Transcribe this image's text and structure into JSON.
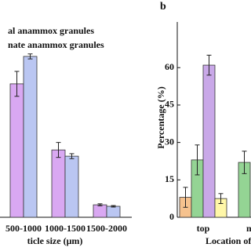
{
  "chart_data": [
    {
      "type": "bar",
      "legend": [
        "al anammox granules",
        "nate anammox granules"
      ],
      "x_label": "ticle size (μm)",
      "categories": [
        "500-1000",
        "1000-1500",
        "1500-2000"
      ],
      "series": [
        {
          "name": "al anammox granules",
          "color": "#d9a8f2",
          "values": [
            53.5,
            27,
            5
          ],
          "errors": [
            5,
            3,
            0.4
          ]
        },
        {
          "name": "nate anammox granules",
          "color": "#bac6f2",
          "values": [
            64.5,
            24.5,
            4.4
          ],
          "errors": [
            1,
            1,
            0.3
          ]
        }
      ],
      "ylim": [
        0,
        78
      ]
    },
    {
      "type": "bar",
      "panel": "b",
      "y_label": "Percentage (%)",
      "x_label": "Location of u",
      "categories": [
        "top",
        "m"
      ],
      "series": [
        {
          "color": "#f6c28e",
          "values": [
            8,
            null
          ],
          "errors": [
            4,
            null
          ]
        },
        {
          "color": "#94d494",
          "values": [
            23,
            22
          ],
          "errors": [
            6,
            4.5
          ]
        },
        {
          "color": "#c9a8e8",
          "values": [
            61,
            null
          ],
          "errors": [
            4,
            null
          ]
        },
        {
          "color": "#fff7a8",
          "values": [
            7.5,
            null
          ],
          "errors": [
            2,
            null
          ]
        }
      ],
      "ylim": [
        0,
        78
      ],
      "yticks": [
        0,
        15,
        30,
        45,
        60
      ]
    }
  ]
}
